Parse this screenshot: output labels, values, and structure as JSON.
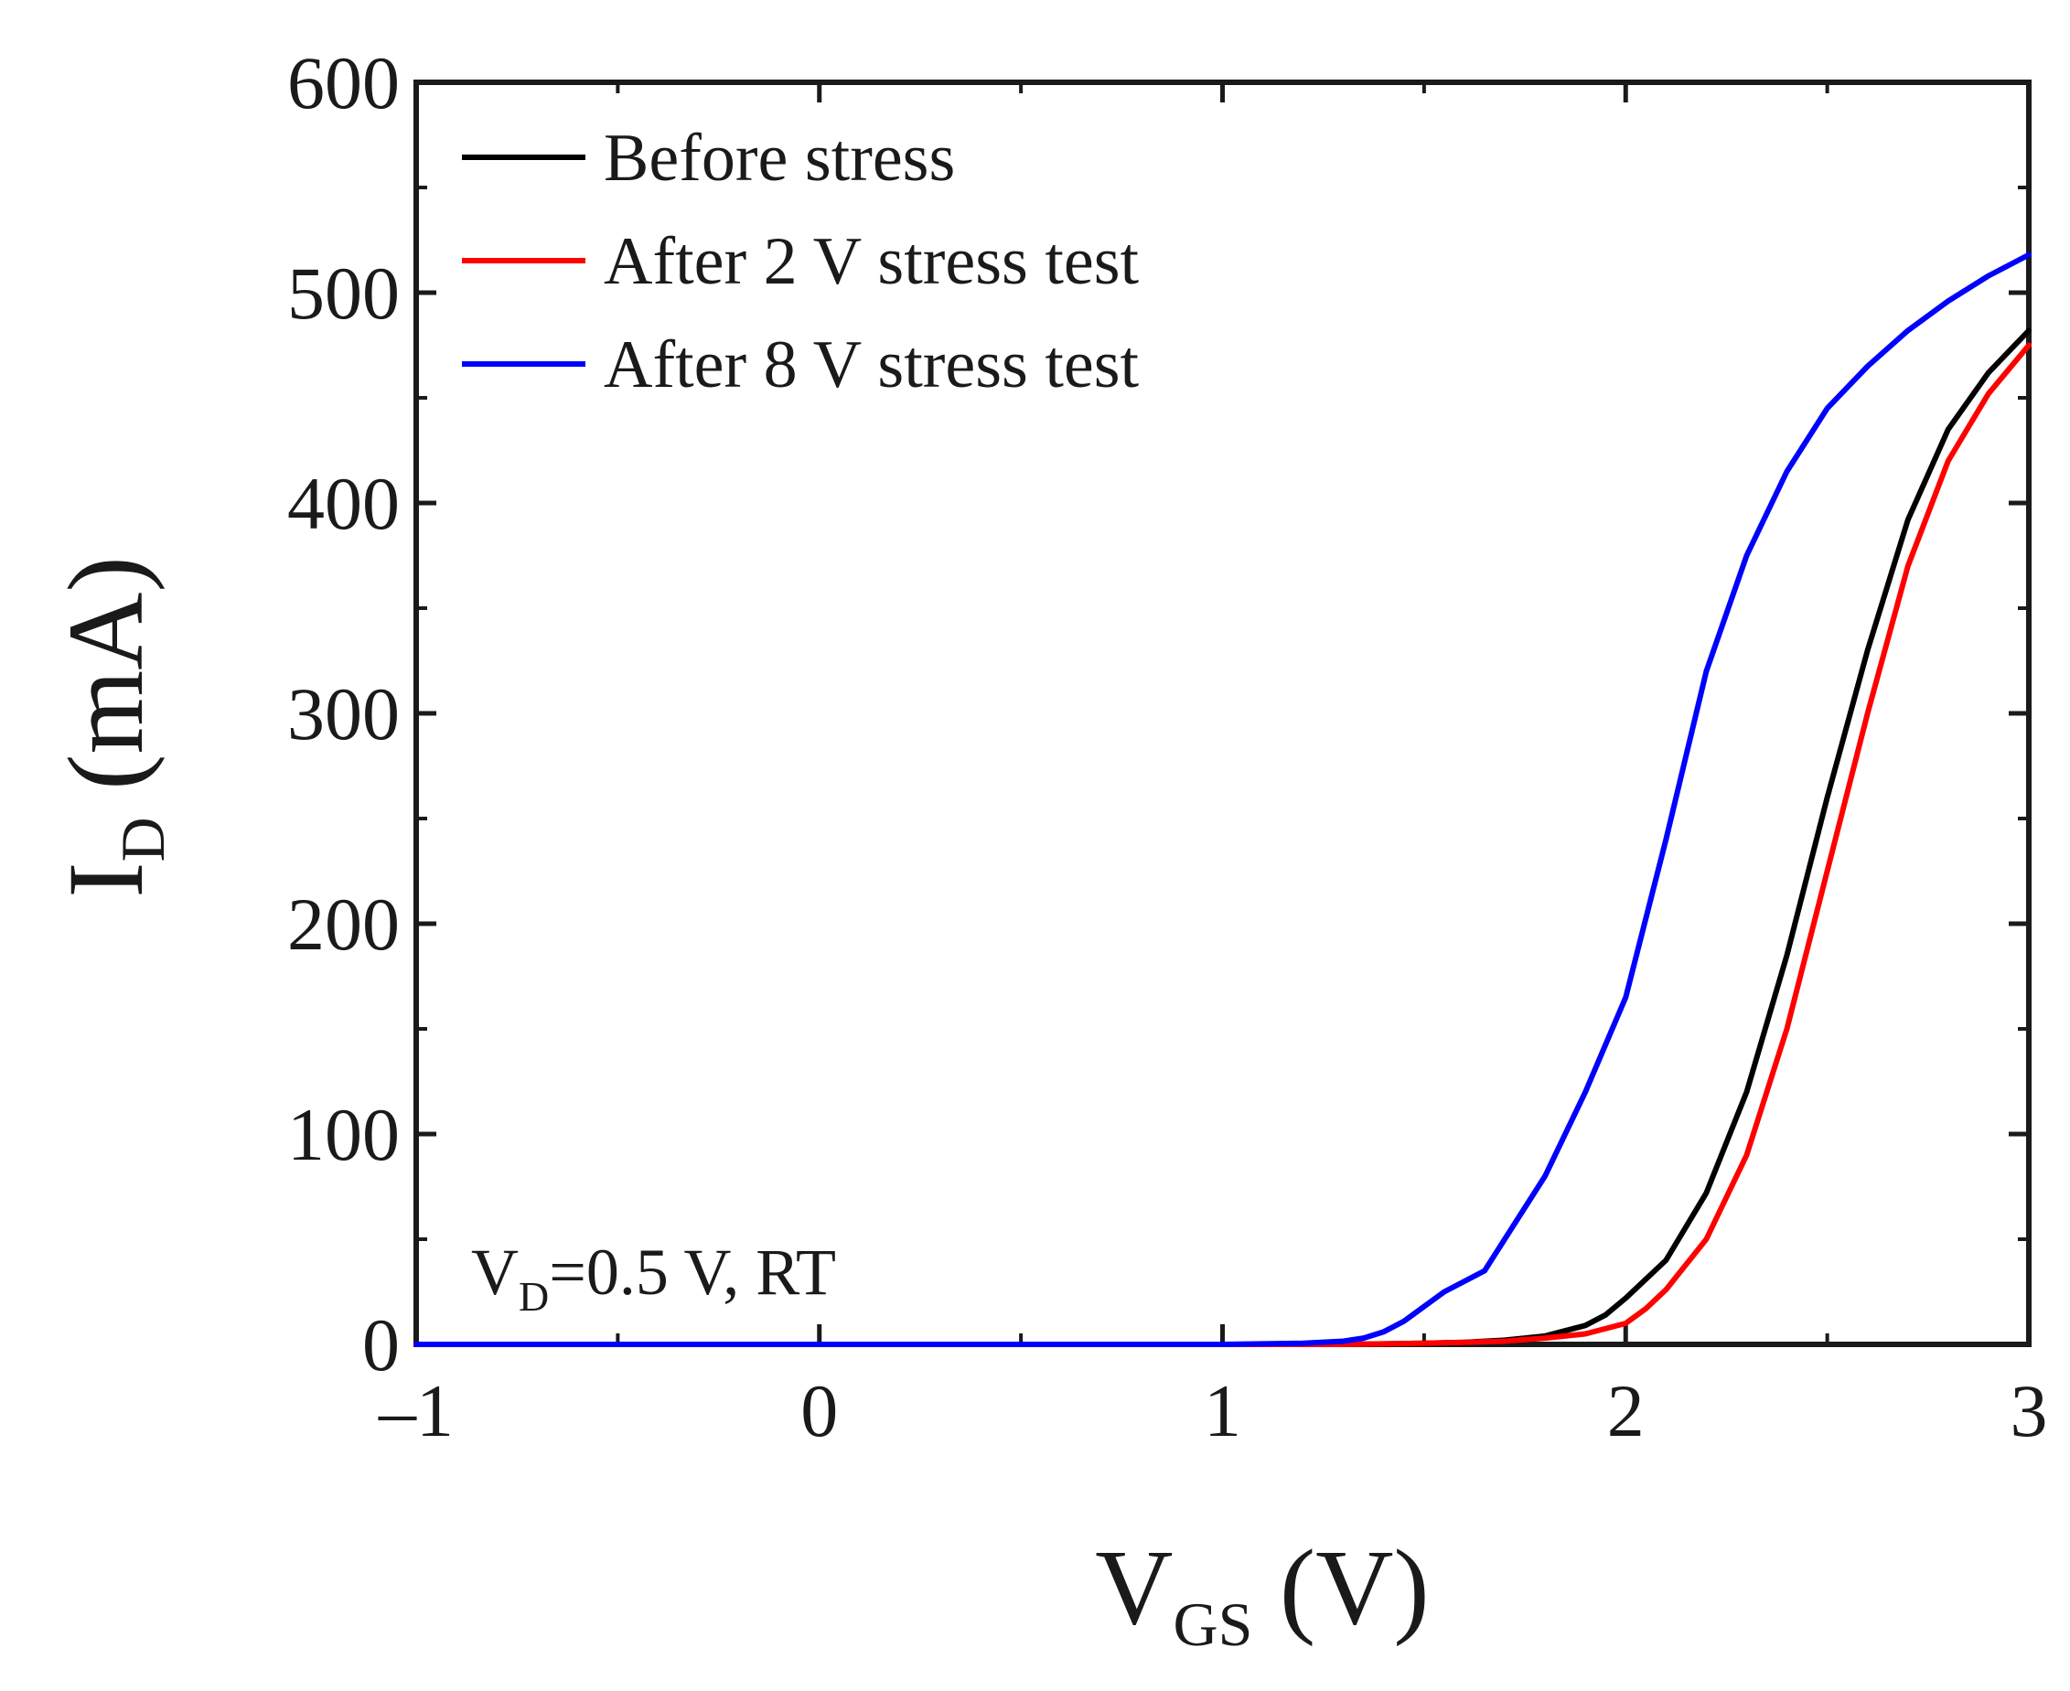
{
  "chart_data": {
    "type": "line",
    "xlabel": {
      "main": "V",
      "sub": "GS",
      "unit": " (V)"
    },
    "ylabel": {
      "main": "I",
      "sub": "D",
      "unit": " (mA)"
    },
    "xlim": [
      -1,
      3
    ],
    "ylim": [
      0,
      600
    ],
    "xticks": [
      -1,
      0,
      1,
      2,
      3
    ],
    "yticks": [
      0,
      100,
      200,
      300,
      400,
      500,
      600
    ],
    "x_tick_labels": [
      "–1",
      "0",
      "1",
      "2",
      "3"
    ],
    "y_tick_labels": [
      "0",
      "100",
      "200",
      "300",
      "400",
      "500",
      "600"
    ],
    "grid": false,
    "legend_position": "top-left",
    "annotation": {
      "main": "V",
      "sub": "D",
      "rest": "=0.5 V,  RT"
    },
    "series": [
      {
        "name": "Before stress",
        "color": "#000000",
        "x": [
          -1,
          1.3,
          1.5,
          1.6,
          1.7,
          1.8,
          1.9,
          1.95,
          2.0,
          2.1,
          2.2,
          2.3,
          2.4,
          2.5,
          2.6,
          2.7,
          2.8,
          2.9,
          3.0
        ],
        "y": [
          0,
          0,
          0.5,
          1,
          2,
          4,
          9,
          14,
          22,
          40,
          72,
          120,
          185,
          260,
          330,
          392,
          435,
          462,
          482
        ]
      },
      {
        "name": "After 2 V stress test",
        "color": "#ff0000",
        "x": [
          -1,
          1.3,
          1.5,
          1.6,
          1.7,
          1.8,
          1.9,
          2.0,
          2.05,
          2.1,
          2.2,
          2.3,
          2.4,
          2.5,
          2.6,
          2.7,
          2.8,
          2.9,
          3.0
        ],
        "y": [
          0,
          0,
          0.5,
          1,
          1.5,
          3,
          5,
          10,
          17,
          26,
          50,
          90,
          150,
          225,
          300,
          370,
          420,
          452,
          475
        ]
      },
      {
        "name": "After 8 V stress test",
        "color": "#0000ff",
        "x": [
          -1,
          1.0,
          1.2,
          1.3,
          1.35,
          1.4,
          1.45,
          1.5,
          1.55,
          1.6,
          1.65,
          1.7,
          1.8,
          1.9,
          2.0,
          2.1,
          2.2,
          2.3,
          2.4,
          2.5,
          2.6,
          2.7,
          2.8,
          2.9,
          3.0
        ],
        "y": [
          0,
          0,
          0.5,
          1.5,
          3,
          6,
          11,
          18,
          25,
          30,
          35,
          50,
          80,
          120,
          165,
          240,
          320,
          375,
          415,
          445,
          465,
          482,
          496,
          508,
          518
        ]
      }
    ]
  }
}
